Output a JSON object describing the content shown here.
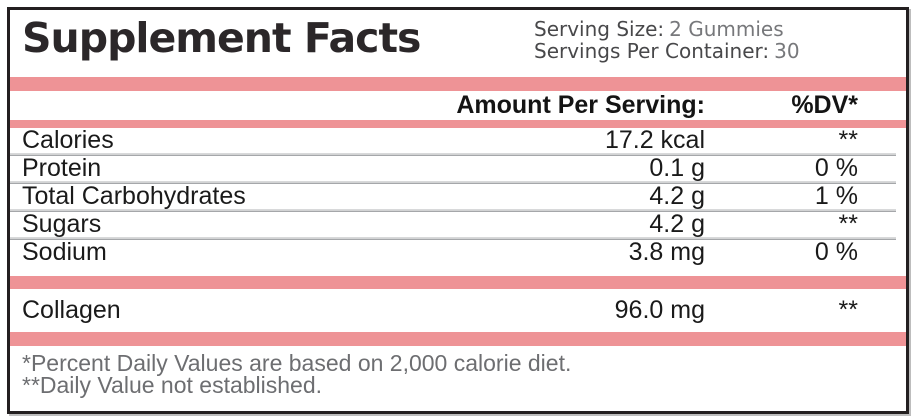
{
  "label": {
    "title": "Supplement Facts",
    "serving": {
      "size_label": "Serving Size:",
      "size_value": "2 Gummies",
      "container_label": "Servings Per Container:",
      "container_value": "30"
    },
    "columns": {
      "amount_header": "Amount Per Serving:",
      "dv_header": "%DV*"
    },
    "rows": [
      {
        "name": "Calories",
        "amount": "17.2 kcal",
        "dv": "**"
      },
      {
        "name": "Protein",
        "amount": "0.1 g",
        "dv": "0 %"
      },
      {
        "name": "Total Carbohydrates",
        "amount": "4.2 g",
        "dv": "1 %"
      },
      {
        "name": "Sugars",
        "amount": "4.2 g",
        "dv": "**"
      },
      {
        "name": "Sodium",
        "amount": "3.8 mg",
        "dv": "0 %"
      }
    ],
    "extra_rows": [
      {
        "name": "Collagen",
        "amount": "96.0 mg",
        "dv": "**"
      }
    ],
    "footnotes": [
      "*Percent Daily Values are based on 2,000 calorie diet.",
      "**Daily Value not established."
    ],
    "colors": {
      "accent_pink": "#EE9396",
      "border_black": "#231F20",
      "value_gray": "#77787B",
      "footnote_gray": "#6D6E71",
      "separator_gray": "#A5A7AA"
    }
  }
}
